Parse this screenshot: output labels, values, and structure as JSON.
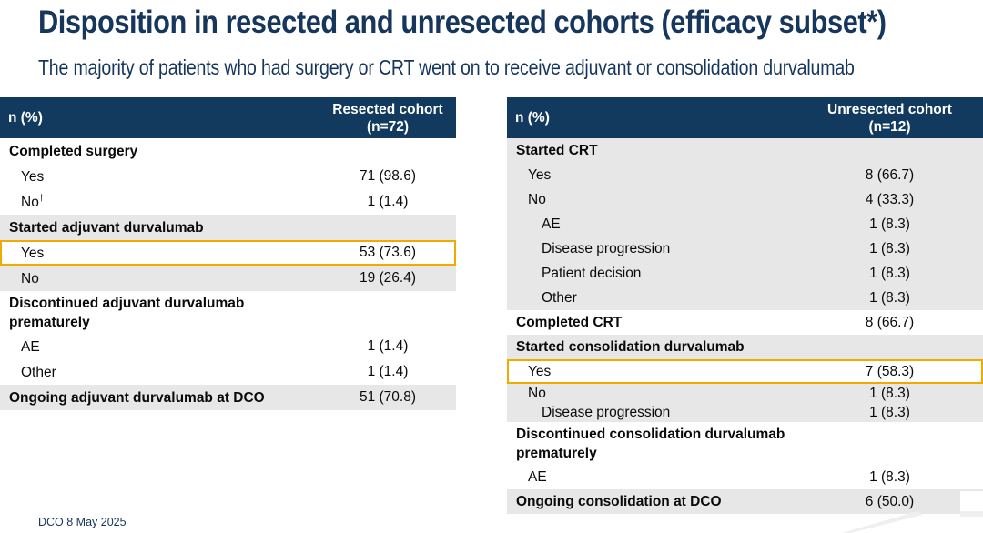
{
  "slide": {
    "title": "Disposition in resected and unresected cohorts (efficacy subset*)",
    "subtitle": "The majority of patients who had surgery or CRT went on to receive adjuvant or consolidation durvalumab",
    "footer_note": "DCO 8 May 2025"
  },
  "colors": {
    "header_navy": "#113A5E",
    "row_gray": "#E7E7E7",
    "highlight_gold": "#F0AB00",
    "heading_text": "#16365C"
  },
  "tables": [
    {
      "id": "resected",
      "header": {
        "col1": "n (%)",
        "col2": "Resected cohort\n(n=72)"
      },
      "rows": [
        {
          "label": "Completed surgery",
          "value": "",
          "bold": true
        },
        {
          "label": "Yes",
          "value": "71 (98.6)",
          "indent": 1
        },
        {
          "label": "No",
          "sup": "†",
          "value": "1 (1.4)",
          "indent": 1
        },
        {
          "label": "Started adjuvant durvalumab",
          "value": "",
          "bold": true,
          "shade": "gray"
        },
        {
          "label": "Yes",
          "value": "53 (73.6)",
          "indent": 1,
          "highlight": true
        },
        {
          "label": "No",
          "value": "19 (26.4)",
          "indent": 1,
          "shade": "gray"
        },
        {
          "label": "Discontinued adjuvant durvalumab\nprematurely",
          "value": "",
          "bold": true,
          "twoline": true
        },
        {
          "label": "AE",
          "value": "1 (1.4)",
          "indent": 1
        },
        {
          "label": "Other",
          "value": "1 (1.4)",
          "indent": 1
        },
        {
          "label": "Ongoing adjuvant durvalumab at DCO",
          "value": "51 (70.8)",
          "bold": true,
          "shade": "gray"
        }
      ]
    },
    {
      "id": "unresected",
      "header": {
        "col1": "n (%)",
        "col2": "Unresected cohort\n(n=12)"
      },
      "rows": [
        {
          "label": "Started CRT",
          "value": "",
          "bold": true,
          "shade": "gray"
        },
        {
          "label": "Yes",
          "value": "8 (66.7)",
          "indent": 1,
          "shade": "gray"
        },
        {
          "label": "No",
          "value": "4 (33.3)",
          "indent": 1,
          "shade": "gray"
        },
        {
          "label": "AE",
          "value": "1 (8.3)",
          "indent": 2,
          "shade": "gray"
        },
        {
          "label": "Disease progression",
          "value": "1 (8.3)",
          "indent": 2,
          "shade": "gray"
        },
        {
          "label": "Patient decision",
          "value": "1 (8.3)",
          "indent": 2,
          "shade": "gray"
        },
        {
          "label": "Other",
          "value": "1 (8.3)",
          "indent": 2,
          "shade": "gray"
        },
        {
          "label": "Completed CRT",
          "value": "8 (66.7)",
          "bold": true
        },
        {
          "label": "Started consolidation durvalumab",
          "value": "",
          "bold": true,
          "shade": "gray"
        },
        {
          "label": "Yes",
          "value": "7 (58.3)",
          "indent": 1,
          "highlight": true
        },
        {
          "label": "No",
          "value": "1 (8.3)",
          "indent": 1,
          "shade": "gray",
          "compact": true
        },
        {
          "label": "Disease progression",
          "value": "1 (8.3)",
          "indent": 2,
          "shade": "gray",
          "compact": true
        },
        {
          "label": "Discontinued consolidation durvalumab\nprematurely",
          "value": "",
          "bold": true,
          "twoline": true
        },
        {
          "label": "AE",
          "value": "1 (8.3)",
          "indent": 1
        },
        {
          "label": "Ongoing consolidation at DCO",
          "value": "6 (50.0)",
          "bold": true,
          "shade": "gray"
        }
      ]
    }
  ]
}
